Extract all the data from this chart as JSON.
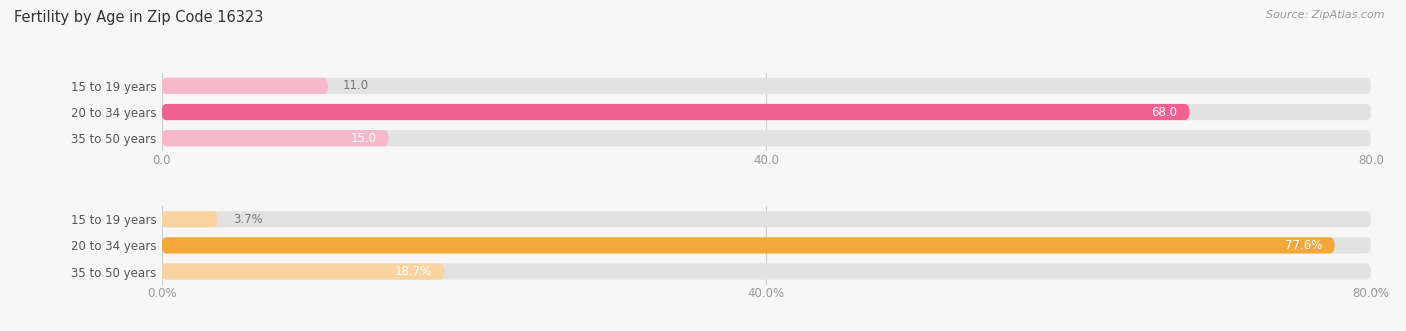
{
  "title": "Fertility by Age in Zip Code 16323",
  "source": "Source: ZipAtlas.com",
  "chart1": {
    "categories": [
      "15 to 19 years",
      "20 to 34 years",
      "35 to 50 years"
    ],
    "values": [
      11.0,
      68.0,
      15.0
    ],
    "xlim": [
      0,
      80
    ],
    "xticks": [
      0.0,
      40.0,
      80.0
    ],
    "xtick_labels": [
      "0.0",
      "40.0",
      "80.0"
    ],
    "bar_color": "#f06090",
    "bar_color_light": "#f8b8cc",
    "value_threshold": 15
  },
  "chart2": {
    "categories": [
      "15 to 19 years",
      "20 to 34 years",
      "35 to 50 years"
    ],
    "values": [
      3.7,
      77.6,
      18.7
    ],
    "xlim": [
      0,
      80
    ],
    "xticks": [
      0.0,
      40.0,
      80.0
    ],
    "xtick_labels": [
      "0.0%",
      "40.0%",
      "80.0%"
    ],
    "bar_color": "#f5a83a",
    "bar_color_light": "#fad4a0",
    "value_threshold": 15
  },
  "fig_bg": "#f7f7f7",
  "bar_bg_color": "#e2e2e2",
  "label_font_size": 8.5,
  "tick_font_size": 8.5,
  "title_font_size": 10.5,
  "source_font_size": 8,
  "category_font_size": 8.5,
  "inside_label_color": "#ffffff",
  "outside_label_color": "#777777"
}
